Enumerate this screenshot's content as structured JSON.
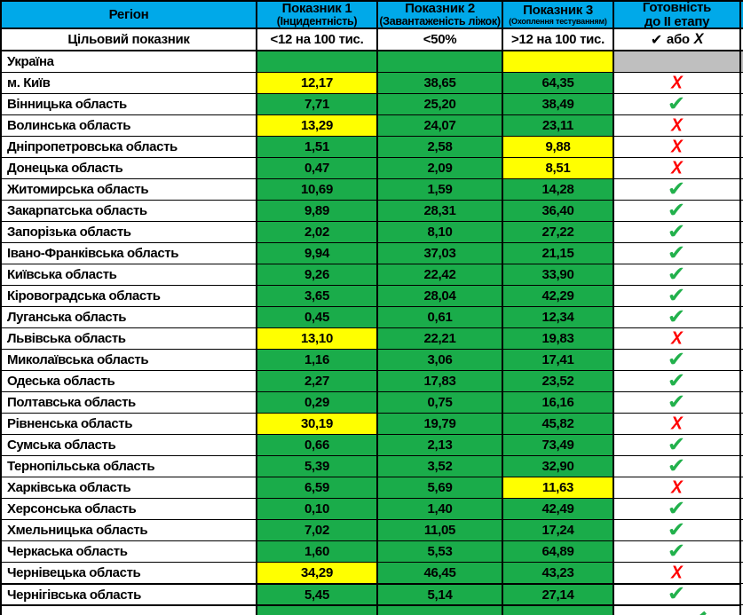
{
  "colors": {
    "blue": "#00A9E9",
    "green": "#1AAC4A",
    "yellow": "#FFFF00",
    "gray": "#BFBFBF",
    "red": "#FF0000",
    "check": "#22B14C"
  },
  "glyphs": {
    "check": "✔",
    "cross": "Х"
  },
  "table": {
    "header": {
      "region": "Регіон",
      "col1_title": "Показник 1",
      "col1_sub": "(Інцидентність)",
      "col2_title": "Показник 2",
      "col2_sub": "(Завантаженість ліжок)",
      "col3_title": "Показник 3",
      "col3_sub": "(Охоплення тестуванням)",
      "col4_line1": "Готовність",
      "col4_line2": "до II етапу"
    },
    "target_row": {
      "label": "Цільовий показник",
      "t1": "<12 на 100 тис.",
      "t2": "<50%",
      "t3": ">12 на 100 тис.",
      "or_text": "або"
    },
    "rows": [
      {
        "region": "Україна",
        "v1": "",
        "c1": "green",
        "v2": "",
        "c2": "green",
        "v3": "",
        "c3": "yellow",
        "ready": "gray"
      },
      {
        "region": "м. Київ",
        "v1": "12,17",
        "c1": "yellow",
        "v2": "38,65",
        "c2": "green",
        "v3": "64,35",
        "c3": "green",
        "ready": "cross"
      },
      {
        "region": "Вінницька область",
        "v1": "7,71",
        "c1": "green",
        "v2": "25,20",
        "c2": "green",
        "v3": "38,49",
        "c3": "green",
        "ready": "check"
      },
      {
        "region": "Волинська область",
        "v1": "13,29",
        "c1": "yellow",
        "v2": "24,07",
        "c2": "green",
        "v3": "23,11",
        "c3": "green",
        "ready": "cross"
      },
      {
        "region": "Дніпропетровська область",
        "v1": "1,51",
        "c1": "green",
        "v2": "2,58",
        "c2": "green",
        "v3": "9,88",
        "c3": "yellow",
        "ready": "cross"
      },
      {
        "region": "Донецька область",
        "v1": "0,47",
        "c1": "green",
        "v2": "2,09",
        "c2": "green",
        "v3": "8,51",
        "c3": "yellow",
        "ready": "cross"
      },
      {
        "region": "Житомирська область",
        "v1": "10,69",
        "c1": "green",
        "v2": "1,59",
        "c2": "green",
        "v3": "14,28",
        "c3": "green",
        "ready": "check"
      },
      {
        "region": "Закарпатська область",
        "v1": "9,89",
        "c1": "green",
        "v2": "28,31",
        "c2": "green",
        "v3": "36,40",
        "c3": "green",
        "ready": "check"
      },
      {
        "region": "Запорізька область",
        "v1": "2,02",
        "c1": "green",
        "v2": "8,10",
        "c2": "green",
        "v3": "27,22",
        "c3": "green",
        "ready": "check"
      },
      {
        "region": "Івано-Франківська область",
        "v1": "9,94",
        "c1": "green",
        "v2": "37,03",
        "c2": "green",
        "v3": "21,15",
        "c3": "green",
        "ready": "check"
      },
      {
        "region": "Київська область",
        "v1": "9,26",
        "c1": "green",
        "v2": "22,42",
        "c2": "green",
        "v3": "33,90",
        "c3": "green",
        "ready": "check"
      },
      {
        "region": "Кіровоградська область",
        "v1": "3,65",
        "c1": "green",
        "v2": "28,04",
        "c2": "green",
        "v3": "42,29",
        "c3": "green",
        "ready": "check"
      },
      {
        "region": "Луганська область",
        "v1": "0,45",
        "c1": "green",
        "v2": "0,61",
        "c2": "green",
        "v3": "12,34",
        "c3": "green",
        "ready": "check"
      },
      {
        "region": "Львівська область",
        "v1": "13,10",
        "c1": "yellow",
        "v2": "22,21",
        "c2": "green",
        "v3": "19,83",
        "c3": "green",
        "ready": "cross"
      },
      {
        "region": "Миколаївська область",
        "v1": "1,16",
        "c1": "green",
        "v2": "3,06",
        "c2": "green",
        "v3": "17,41",
        "c3": "green",
        "ready": "check"
      },
      {
        "region": "Одеська область",
        "v1": "2,27",
        "c1": "green",
        "v2": "17,83",
        "c2": "green",
        "v3": "23,52",
        "c3": "green",
        "ready": "check"
      },
      {
        "region": "Полтавська область",
        "v1": "0,29",
        "c1": "green",
        "v2": "0,75",
        "c2": "green",
        "v3": "16,16",
        "c3": "green",
        "ready": "check"
      },
      {
        "region": "Рівненська область",
        "v1": "30,19",
        "c1": "yellow",
        "v2": "19,79",
        "c2": "green",
        "v3": "45,82",
        "c3": "green",
        "ready": "cross"
      },
      {
        "region": "Сумська область",
        "v1": "0,66",
        "c1": "green",
        "v2": "2,13",
        "c2": "green",
        "v3": "73,49",
        "c3": "green",
        "ready": "check"
      },
      {
        "region": "Тернопільська область",
        "v1": "5,39",
        "c1": "green",
        "v2": "3,52",
        "c2": "green",
        "v3": "32,90",
        "c3": "green",
        "ready": "check"
      },
      {
        "region": "Харківська область",
        "v1": "6,59",
        "c1": "green",
        "v2": "5,69",
        "c2": "green",
        "v3": "11,63",
        "c3": "yellow",
        "ready": "cross"
      },
      {
        "region": "Херсонська область",
        "v1": "0,10",
        "c1": "green",
        "v2": "1,40",
        "c2": "green",
        "v3": "42,49",
        "c3": "green",
        "ready": "check"
      },
      {
        "region": "Хмельницька область",
        "v1": "7,02",
        "c1": "green",
        "v2": "11,05",
        "c2": "green",
        "v3": "17,24",
        "c3": "green",
        "ready": "check"
      },
      {
        "region": "Черкаська область",
        "v1": "1,60",
        "c1": "green",
        "v2": "5,53",
        "c2": "green",
        "v3": "64,89",
        "c3": "green",
        "ready": "check"
      },
      {
        "region": "Чернівецька область",
        "v1": "34,29",
        "c1": "yellow",
        "v2": "46,45",
        "c2": "green",
        "v3": "43,23",
        "c3": "green",
        "ready": "cross"
      },
      {
        "region": "Чернігівська область",
        "v1": "5,45",
        "c1": "green",
        "v2": "5,14",
        "c2": "green",
        "v3": "27,14",
        "c3": "green",
        "ready": "check"
      }
    ],
    "clipped_bottom_row": {
      "c1": "green",
      "c2": "green",
      "c3": "green"
    }
  }
}
